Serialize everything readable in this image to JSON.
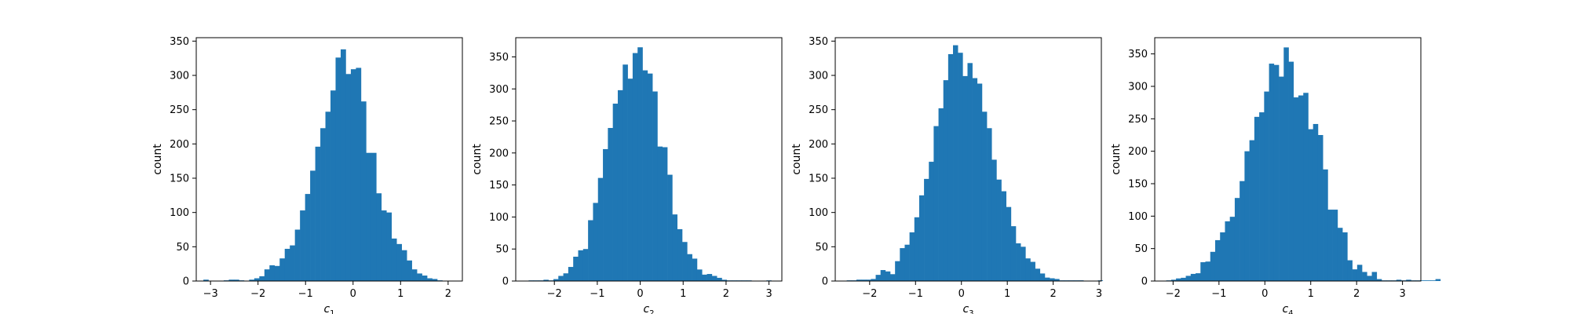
{
  "figure": {
    "background": "#ffffff",
    "bar_color": "#1f77b4"
  },
  "chart_data": [
    {
      "type": "bar",
      "subtype": "histogram",
      "xlabel": "c",
      "xlabel_sub": "1",
      "ylabel": "count",
      "xlim": [
        -3.3,
        2.3
      ],
      "ylim": [
        0,
        355
      ],
      "xticks": [
        -3,
        -2,
        -1,
        0,
        1,
        2
      ],
      "yticks": [
        0,
        50,
        100,
        150,
        200,
        250,
        300,
        350
      ],
      "bin_start": -3.15,
      "bin_width": 0.107,
      "values": [
        2,
        0,
        0,
        0,
        1,
        2,
        2,
        1,
        0,
        2,
        4,
        7,
        17,
        23,
        22,
        33,
        47,
        52,
        75,
        103,
        127,
        161,
        196,
        223,
        247,
        278,
        326,
        338,
        302,
        309,
        311,
        262,
        187,
        187,
        128,
        103,
        100,
        62,
        54,
        45,
        30,
        17,
        11,
        8,
        4,
        3,
        1
      ]
    },
    {
      "type": "bar",
      "subtype": "histogram",
      "xlabel": "c",
      "xlabel_sub": "2",
      "ylabel": "count",
      "xlim": [
        -2.9,
        3.3
      ],
      "ylim": [
        0,
        380
      ],
      "xticks": [
        -2,
        -1,
        0,
        1,
        2,
        3
      ],
      "yticks": [
        0,
        50,
        100,
        150,
        200,
        250,
        300,
        350
      ],
      "bin_start": -2.6,
      "bin_width": 0.1154,
      "values": [
        1,
        1,
        1,
        2,
        1,
        3,
        8,
        12,
        22,
        38,
        48,
        50,
        95,
        122,
        161,
        206,
        239,
        277,
        298,
        338,
        316,
        356,
        365,
        329,
        324,
        296,
        210,
        209,
        166,
        104,
        81,
        61,
        42,
        35,
        18,
        10,
        11,
        8,
        5,
        2,
        1,
        1,
        1,
        1,
        1,
        0,
        0,
        0,
        1
      ]
    },
    {
      "type": "bar",
      "subtype": "histogram",
      "xlabel": "c",
      "xlabel_sub": "3",
      "ylabel": "count",
      "xlim": [
        -2.75,
        3.05
      ],
      "ylim": [
        0,
        355
      ],
      "xticks": [
        -2,
        -1,
        0,
        1,
        2,
        3
      ],
      "yticks": [
        0,
        50,
        100,
        150,
        200,
        250,
        300,
        350
      ],
      "bin_start": -2.5,
      "bin_width": 0.1053,
      "values": [
        1,
        1,
        2,
        2,
        2,
        3,
        9,
        16,
        14,
        10,
        29,
        48,
        53,
        71,
        93,
        125,
        149,
        174,
        226,
        252,
        293,
        331,
        344,
        333,
        299,
        318,
        296,
        288,
        247,
        223,
        177,
        148,
        131,
        108,
        80,
        55,
        50,
        33,
        28,
        18,
        11,
        5,
        4,
        3,
        1,
        1,
        1,
        1,
        1,
        0,
        0,
        0,
        1
      ]
    },
    {
      "type": "bar",
      "subtype": "histogram",
      "xlabel": "c",
      "xlabel_sub": "4",
      "ylabel": "count",
      "xlim": [
        -2.4,
        3.4
      ],
      "ylim": [
        0,
        375
      ],
      "xticks": [
        -2,
        -1,
        0,
        1,
        2,
        3
      ],
      "yticks": [
        0,
        50,
        100,
        150,
        200,
        250,
        300,
        350
      ],
      "bin_start": -2.15,
      "bin_width": 0.1067,
      "values": [
        1,
        2,
        4,
        5,
        8,
        11,
        12,
        29,
        30,
        45,
        63,
        75,
        92,
        99,
        128,
        154,
        200,
        217,
        253,
        260,
        292,
        335,
        333,
        315,
        360,
        338,
        283,
        286,
        290,
        234,
        242,
        225,
        172,
        110,
        110,
        82,
        75,
        32,
        18,
        25,
        14,
        8,
        14,
        3,
        1,
        1,
        1,
        2,
        1,
        2,
        1,
        1,
        1,
        1,
        1,
        3
      ]
    }
  ]
}
